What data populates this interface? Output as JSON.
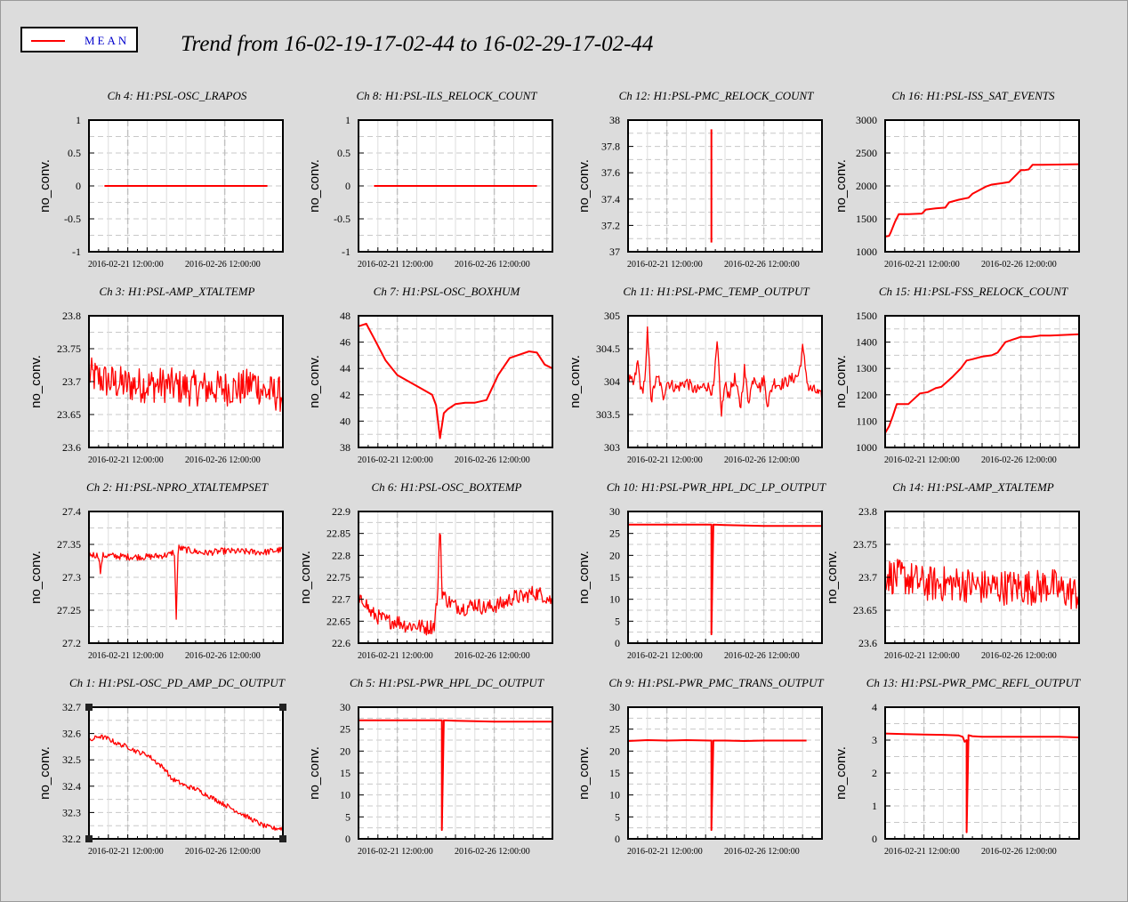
{
  "legend": {
    "label": "MEAN",
    "color": "#ff0000"
  },
  "title": "Trend from 16-02-19-17-02-44 to 16-02-29-17-02-44",
  "chart_data": [
    {
      "type": "line",
      "title": "Ch 4: H1:PSL-OSC_LRAPOS",
      "ylabel": "no_conv.",
      "ylim": [
        -1,
        1
      ],
      "yticks": [
        "1",
        "0.5",
        "0",
        "-0.5",
        "-1"
      ],
      "xticks": [
        "2016-02-21 12:00:00",
        "2016-02-26 12:00:00"
      ],
      "grid": true,
      "series": [
        {
          "x": [
            0.08,
            0.92
          ],
          "y": [
            0,
            0
          ]
        }
      ]
    },
    {
      "type": "line",
      "title": "Ch 8: H1:PSL-ILS_RELOCK_COUNT",
      "ylabel": "no_conv.",
      "ylim": [
        -1,
        1
      ],
      "yticks": [
        "1",
        "0.5",
        "0",
        "-0.5",
        "-1"
      ],
      "xticks": [
        "2016-02-21 12:00:00",
        "2016-02-26 12:00:00"
      ],
      "grid": true,
      "series": [
        {
          "x": [
            0.08,
            0.92
          ],
          "y": [
            0,
            0
          ]
        }
      ]
    },
    {
      "type": "line",
      "title": "Ch 12: H1:PSL-PMC_RELOCK_COUNT",
      "ylabel": "no_conv.",
      "ylim": [
        37,
        38
      ],
      "yticks": [
        "38",
        "37.8",
        "37.6",
        "37.4",
        "37.2",
        "37"
      ],
      "xticks": [
        "2016-02-21 12:00:00",
        "2016-02-26 12:00:00"
      ],
      "grid": true,
      "series": [
        {
          "x": [
            0.43,
            0.43
          ],
          "y": [
            37.07,
            37.93
          ]
        }
      ]
    },
    {
      "type": "line",
      "title": "Ch 16: H1:PSL-ISS_SAT_EVENTS",
      "ylabel": "no_conv.",
      "ylim": [
        1000,
        3000
      ],
      "yticks": [
        "3000",
        "2500",
        "2000",
        "1500",
        "1000"
      ],
      "xticks": [
        "2016-02-21 12:00:00",
        "2016-02-26 12:00:00"
      ],
      "grid": true,
      "series": [
        {
          "x": [
            0,
            0.02,
            0.03,
            0.05,
            0.07,
            0.12,
            0.19,
            0.21,
            0.26,
            0.31,
            0.33,
            0.38,
            0.43,
            0.45,
            0.52,
            0.55,
            0.6,
            0.64,
            0.66,
            0.7,
            0.72,
            0.74,
            0.76,
            0.81,
            1
          ],
          "y": [
            1230,
            1240,
            1300,
            1450,
            1570,
            1570,
            1580,
            1640,
            1660,
            1670,
            1750,
            1790,
            1820,
            1880,
            1990,
            2020,
            2040,
            2060,
            2120,
            2240,
            2240,
            2250,
            2320,
            2320,
            2330
          ]
        }
      ]
    },
    {
      "type": "line",
      "title": "Ch 3: H1:PSL-AMP_XTALTEMP",
      "ylabel": "no_conv.",
      "ylim": [
        23.6,
        23.8
      ],
      "yticks": [
        "23.8",
        "23.75",
        "23.7",
        "23.65",
        "23.6"
      ],
      "xticks": [
        "2016-02-21 12:00:00",
        "2016-02-26 12:00:00"
      ],
      "grid": true,
      "series": [
        {
          "x": [
            0,
            0.05,
            0.1,
            0.2,
            0.3,
            0.4,
            0.5,
            0.6,
            0.7,
            0.8,
            0.85,
            0.9,
            1
          ],
          "y": [
            23.71,
            23.705,
            23.7,
            23.695,
            23.695,
            23.695,
            23.69,
            23.69,
            23.69,
            23.69,
            23.7,
            23.685,
            23.68
          ],
          "band": 0.055
        }
      ]
    },
    {
      "type": "line",
      "title": "Ch 7: H1:PSL-OSC_BOXHUM",
      "ylabel": "no_conv.",
      "ylim": [
        38,
        48
      ],
      "yticks": [
        "48",
        "46",
        "44",
        "42",
        "40",
        "38"
      ],
      "xticks": [
        "2016-02-21 12:00:00",
        "2016-02-26 12:00:00"
      ],
      "grid": true,
      "series": [
        {
          "x": [
            0,
            0.04,
            0.08,
            0.14,
            0.2,
            0.26,
            0.32,
            0.38,
            0.4,
            0.42,
            0.44,
            0.46,
            0.5,
            0.55,
            0.6,
            0.66,
            0.72,
            0.78,
            0.84,
            0.88,
            0.92,
            0.96,
            1
          ],
          "y": [
            47.2,
            47.4,
            46.3,
            44.6,
            43.5,
            43.0,
            42.5,
            42.0,
            41.2,
            38.7,
            40.6,
            40.9,
            41.3,
            41.4,
            41.4,
            41.6,
            43.5,
            44.8,
            45.1,
            45.3,
            45.2,
            44.3,
            44.0
          ]
        }
      ]
    },
    {
      "type": "line",
      "title": "Ch 11: H1:PSL-PMC_TEMP_OUTPUT",
      "ylabel": "no_conv.",
      "ylim": [
        303,
        305
      ],
      "yticks": [
        "305",
        "304.5",
        "304",
        "303.5",
        "303"
      ],
      "xticks": [
        "2016-02-21 12:00:00",
        "2016-02-26 12:00:00"
      ],
      "grid": true,
      "series": [
        {
          "x": [
            0,
            0.03,
            0.05,
            0.07,
            0.09,
            0.1,
            0.12,
            0.14,
            0.16,
            0.18,
            0.2,
            0.25,
            0.3,
            0.35,
            0.4,
            0.44,
            0.46,
            0.48,
            0.5,
            0.52,
            0.55,
            0.58,
            0.6,
            0.62,
            0.65,
            0.68,
            0.7,
            0.72,
            0.75,
            0.78,
            0.82,
            0.85,
            0.88,
            0.9,
            0.93,
            0.97,
            1
          ],
          "y": [
            304.05,
            303.95,
            304.3,
            303.8,
            304.1,
            304.75,
            303.7,
            304.0,
            304.05,
            303.75,
            304.0,
            303.9,
            304.0,
            303.85,
            303.95,
            303.85,
            304.6,
            303.5,
            303.95,
            303.8,
            304.05,
            303.6,
            304.2,
            303.7,
            304.1,
            303.9,
            304.05,
            303.65,
            304.0,
            303.95,
            304.0,
            304.05,
            304.1,
            304.5,
            303.9,
            303.85,
            303.75
          ],
          "band": 0.18
        }
      ]
    },
    {
      "type": "line",
      "title": "Ch 15: H1:PSL-FSS_RELOCK_COUNT",
      "ylabel": "no_conv.",
      "ylim": [
        1000,
        1500
      ],
      "yticks": [
        "1500",
        "1400",
        "1300",
        "1200",
        "1100",
        "1000"
      ],
      "xticks": [
        "2016-02-21 12:00:00",
        "2016-02-26 12:00:00"
      ],
      "grid": true,
      "series": [
        {
          "x": [
            0,
            0.02,
            0.04,
            0.06,
            0.12,
            0.15,
            0.18,
            0.22,
            0.26,
            0.29,
            0.32,
            0.35,
            0.39,
            0.42,
            0.45,
            0.5,
            0.55,
            0.58,
            0.62,
            0.66,
            0.7,
            0.75,
            0.8,
            0.85,
            1
          ],
          "y": [
            1055,
            1080,
            1120,
            1165,
            1165,
            1185,
            1205,
            1210,
            1225,
            1230,
            1250,
            1270,
            1300,
            1330,
            1335,
            1345,
            1350,
            1360,
            1400,
            1410,
            1420,
            1420,
            1425,
            1425,
            1430
          ]
        }
      ]
    },
    {
      "type": "line",
      "title": "Ch 2: H1:PSL-NPRO_XTALTEMPSET",
      "ylabel": "no_conv.",
      "ylim": [
        27.2,
        27.4
      ],
      "yticks": [
        "27.4",
        "27.35",
        "27.3",
        "27.25",
        "27.2"
      ],
      "xticks": [
        "2016-02-21 12:00:00",
        "2016-02-26 12:00:00"
      ],
      "grid": true,
      "series": [
        {
          "x": [
            0,
            0.05,
            0.06,
            0.07,
            0.1,
            0.2,
            0.3,
            0.38,
            0.42,
            0.44,
            0.45,
            0.46,
            0.5,
            0.55,
            0.6,
            0.7,
            0.8,
            0.9,
            1
          ],
          "y": [
            27.335,
            27.333,
            27.305,
            27.333,
            27.333,
            27.331,
            27.331,
            27.333,
            27.335,
            27.34,
            27.24,
            27.345,
            27.342,
            27.339,
            27.337,
            27.34,
            27.339,
            27.338,
            27.342
          ],
          "band": 0.01
        }
      ]
    },
    {
      "type": "line",
      "title": "Ch 6: H1:PSL-OSC_BOXTEMP",
      "ylabel": "no_conv.",
      "ylim": [
        22.6,
        22.9
      ],
      "yticks": [
        "22.9",
        "22.85",
        "22.8",
        "22.75",
        "22.7",
        "22.65",
        "22.6"
      ],
      "xticks": [
        "2016-02-21 12:00:00",
        "2016-02-26 12:00:00"
      ],
      "grid": true,
      "series": [
        {
          "x": [
            0,
            0.03,
            0.06,
            0.1,
            0.15,
            0.2,
            0.25,
            0.3,
            0.35,
            0.39,
            0.41,
            0.42,
            0.43,
            0.45,
            0.5,
            0.55,
            0.6,
            0.65,
            0.7,
            0.75,
            0.8,
            0.85,
            0.9,
            0.95,
            1
          ],
          "y": [
            22.69,
            22.7,
            22.67,
            22.66,
            22.65,
            22.65,
            22.64,
            22.64,
            22.635,
            22.64,
            22.72,
            22.895,
            22.72,
            22.7,
            22.685,
            22.68,
            22.69,
            22.68,
            22.685,
            22.69,
            22.705,
            22.705,
            22.715,
            22.71,
            22.695
          ],
          "band": 0.035
        }
      ]
    },
    {
      "type": "line",
      "title": "Ch 10: H1:PSL-PWR_HPL_DC_LP_OUTPUT",
      "ylabel": "no_conv.",
      "ylim": [
        0,
        30
      ],
      "yticks": [
        "30",
        "25",
        "20",
        "15",
        "10",
        "5",
        "0"
      ],
      "xticks": [
        "2016-02-21 12:00:00",
        "2016-02-26 12:00:00"
      ],
      "grid": true,
      "series": [
        {
          "x": [
            0,
            0.3,
            0.42,
            0.43,
            0.43,
            0.44,
            0.5,
            0.6,
            0.7,
            1
          ],
          "y": [
            27,
            27,
            27,
            27,
            2,
            27,
            26.9,
            26.8,
            26.7,
            26.7
          ]
        }
      ]
    },
    {
      "type": "line",
      "title": "Ch 14: H1:PSL-AMP_XTALTEMP",
      "ylabel": "no_conv.",
      "ylim": [
        23.6,
        23.8
      ],
      "yticks": [
        "23.8",
        "23.75",
        "23.7",
        "23.65",
        "23.6"
      ],
      "xticks": [
        "2016-02-21 12:00:00",
        "2016-02-26 12:00:00"
      ],
      "grid": true,
      "series": [
        {
          "x": [
            0,
            0.05,
            0.1,
            0.2,
            0.3,
            0.4,
            0.5,
            0.6,
            0.7,
            0.8,
            0.85,
            0.9,
            1
          ],
          "y": [
            23.705,
            23.7,
            23.7,
            23.69,
            23.69,
            23.69,
            23.685,
            23.685,
            23.685,
            23.685,
            23.69,
            23.68,
            23.675
          ],
          "band": 0.055
        }
      ]
    },
    {
      "type": "line",
      "title": "Ch 1: H1:PSL-OSC_PD_AMP_DC_OUTPUT",
      "ylabel": "no_conv.",
      "ylim": [
        32.2,
        32.7
      ],
      "yticks": [
        "32.7",
        "32.6",
        "32.5",
        "32.4",
        "32.3",
        "32.2"
      ],
      "xticks": [
        "2016-02-21 12:00:00",
        "2016-02-26 12:00:00"
      ],
      "grid": true,
      "series": [
        {
          "x": [
            0,
            0.05,
            0.1,
            0.15,
            0.2,
            0.25,
            0.3,
            0.35,
            0.4,
            0.42,
            0.45,
            0.5,
            0.55,
            0.6,
            0.65,
            0.7,
            0.75,
            0.8,
            0.85,
            0.9,
            0.95,
            1
          ],
          "y": [
            32.57,
            32.59,
            32.58,
            32.56,
            32.55,
            32.53,
            32.52,
            32.49,
            32.46,
            32.43,
            32.42,
            32.4,
            32.39,
            32.37,
            32.35,
            32.33,
            32.31,
            32.29,
            32.27,
            32.25,
            32.24,
            32.24
          ],
          "band": 0.018
        }
      ]
    },
    {
      "type": "line",
      "title": "Ch 5: H1:PSL-PWR_HPL_DC_OUTPUT",
      "ylabel": "no_conv.",
      "ylim": [
        0,
        30
      ],
      "yticks": [
        "30",
        "25",
        "20",
        "15",
        "10",
        "5",
        "0"
      ],
      "xticks": [
        "2016-02-21 12:00:00",
        "2016-02-26 12:00:00"
      ],
      "grid": true,
      "series": [
        {
          "x": [
            0,
            0.3,
            0.42,
            0.43,
            0.43,
            0.44,
            0.5,
            0.6,
            0.7,
            1
          ],
          "y": [
            27,
            27,
            27,
            27,
            2,
            27,
            26.9,
            26.8,
            26.7,
            26.7
          ]
        }
      ]
    },
    {
      "type": "line",
      "title": "Ch 9: H1:PSL-PWR_PMC_TRANS_OUTPUT",
      "ylabel": "no_conv.",
      "ylim": [
        0,
        30
      ],
      "yticks": [
        "30",
        "25",
        "20",
        "15",
        "10",
        "5",
        "0"
      ],
      "xticks": [
        "2016-02-21 12:00:00",
        "2016-02-26 12:00:00"
      ],
      "grid": true,
      "series": [
        {
          "x": [
            0,
            0.1,
            0.2,
            0.3,
            0.42,
            0.43,
            0.43,
            0.44,
            0.5,
            0.6,
            0.7,
            0.8,
            0.92
          ],
          "y": [
            22.3,
            22.5,
            22.4,
            22.5,
            22.4,
            22.4,
            2,
            22.4,
            22.4,
            22.3,
            22.4,
            22.4,
            22.4
          ]
        }
      ]
    },
    {
      "type": "line",
      "title": "Ch 13: H1:PSL-PWR_PMC_REFL_OUTPUT",
      "ylabel": "no_conv.",
      "ylim": [
        0,
        4
      ],
      "yticks": [
        "4",
        "3",
        "2",
        "1",
        "0"
      ],
      "xticks": [
        "2016-02-21 12:00:00",
        "2016-02-26 12:00:00"
      ],
      "grid": true,
      "series": [
        {
          "x": [
            0,
            0.1,
            0.2,
            0.3,
            0.38,
            0.4,
            0.41,
            0.42,
            0.42,
            0.43,
            0.45,
            0.5,
            0.6,
            0.7,
            0.8,
            0.9,
            1
          ],
          "y": [
            3.2,
            3.18,
            3.17,
            3.16,
            3.14,
            3.1,
            2.95,
            3.0,
            0.2,
            3.15,
            3.12,
            3.1,
            3.1,
            3.1,
            3.1,
            3.1,
            3.08
          ]
        }
      ]
    }
  ]
}
